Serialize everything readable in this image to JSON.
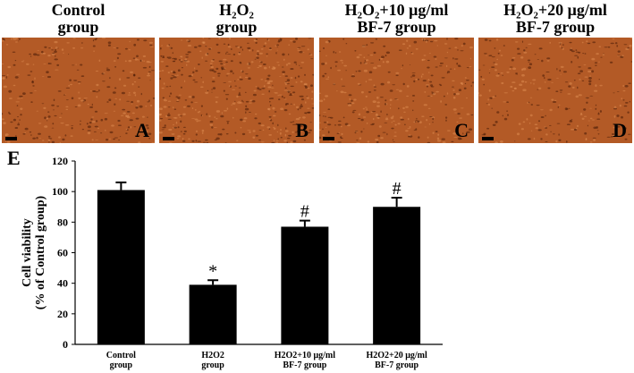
{
  "panels": [
    {
      "title_line1": "Control",
      "title_line2": "group",
      "letter": "A",
      "title_x": 73,
      "left": 2,
      "width": 171
    },
    {
      "title_line1": "H₂O₂",
      "title_line2": "group",
      "letter": "B",
      "left": 178,
      "width": 173
    },
    {
      "title_line1": "H₂O₂+10 μg/ml",
      "title_line2": "BF-7 group",
      "letter": "C",
      "left": 357,
      "width": 173
    },
    {
      "title_line1": "H₂O₂+20 μg/ml",
      "title_line2": "BF-7 group",
      "letter": "D",
      "left": 535,
      "width": 172
    }
  ],
  "colors": {
    "micrograph_base": "#b35a26",
    "bars": "#000000"
  },
  "chart_panel_letter": "E",
  "chart_data": {
    "type": "bar",
    "categories": [
      [
        "Control",
        "group"
      ],
      [
        "H2O2",
        "group"
      ],
      [
        "H2O2+10 μg/ml",
        "BF-7 group"
      ],
      [
        "H2O2+20 μg/ml",
        "BF-7 group"
      ]
    ],
    "values": [
      101,
      39,
      77,
      90
    ],
    "errors": [
      5,
      3,
      4,
      6
    ],
    "annotations": [
      "",
      "*",
      "#",
      "#"
    ],
    "ylabel_line1": "Cell viability",
    "ylabel_line2": "(% of Control group)",
    "ylim": [
      0,
      120
    ],
    "yticks": [
      "0",
      "20",
      "40",
      "60",
      "80",
      "100",
      "120"
    ],
    "grid": false
  }
}
